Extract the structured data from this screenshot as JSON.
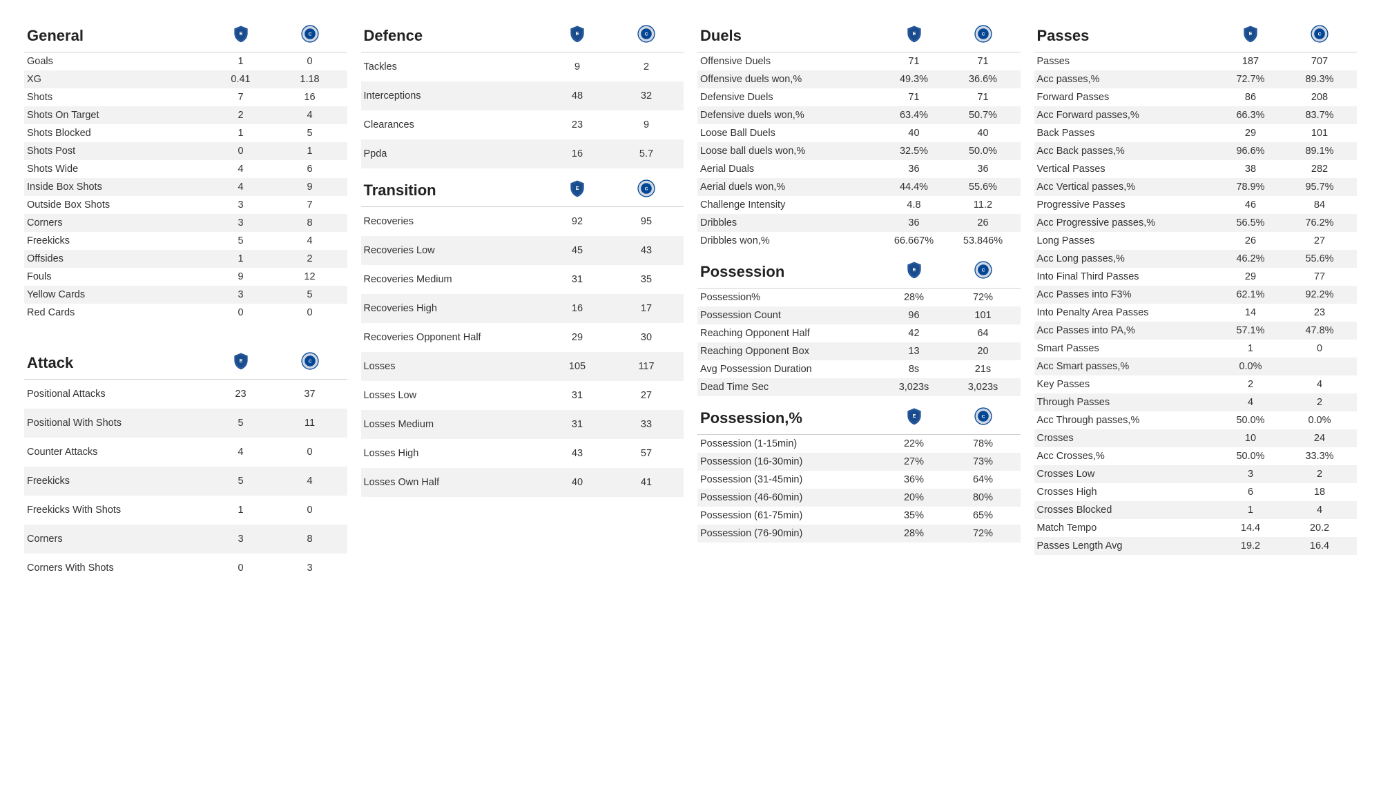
{
  "teams": {
    "a_color1": "#1a4c8b",
    "a_color2": "#2a5fa8",
    "b_color1": "#034694",
    "b_color2": "#d0d7e5"
  },
  "sections": {
    "general": {
      "title": "General",
      "rows": [
        {
          "label": "Goals",
          "a": "1",
          "b": "0"
        },
        {
          "label": "XG",
          "a": "0.41",
          "b": "1.18"
        },
        {
          "label": "Shots",
          "a": "7",
          "b": "16"
        },
        {
          "label": "Shots On Target",
          "a": "2",
          "b": "4"
        },
        {
          "label": "Shots Blocked",
          "a": "1",
          "b": "5"
        },
        {
          "label": "Shots Post",
          "a": "0",
          "b": "1"
        },
        {
          "label": "Shots Wide",
          "a": "4",
          "b": "6"
        },
        {
          "label": "Inside Box Shots",
          "a": "4",
          "b": "9"
        },
        {
          "label": "Outside Box Shots",
          "a": "3",
          "b": "7"
        },
        {
          "label": "Corners",
          "a": "3",
          "b": "8"
        },
        {
          "label": "Freekicks",
          "a": "5",
          "b": "4"
        },
        {
          "label": "Offsides",
          "a": "1",
          "b": "2"
        },
        {
          "label": "Fouls",
          "a": "9",
          "b": "12"
        },
        {
          "label": "Yellow Cards",
          "a": "3",
          "b": "5"
        },
        {
          "label": "Red Cards",
          "a": "0",
          "b": "0"
        }
      ]
    },
    "attack": {
      "title": "Attack",
      "rows": [
        {
          "label": "Positional Attacks",
          "a": "23",
          "b": "37"
        },
        {
          "label": "Positional With Shots",
          "a": "5",
          "b": "11"
        },
        {
          "label": "Counter Attacks",
          "a": "4",
          "b": "0"
        },
        {
          "label": "Freekicks",
          "a": "5",
          "b": "4"
        },
        {
          "label": "Freekicks With Shots",
          "a": "1",
          "b": "0"
        },
        {
          "label": "Corners",
          "a": "3",
          "b": "8"
        },
        {
          "label": "Corners With Shots",
          "a": "0",
          "b": "3"
        }
      ]
    },
    "defence": {
      "title": "Defence",
      "rows": [
        {
          "label": "Tackles",
          "a": "9",
          "b": "2"
        },
        {
          "label": "Interceptions",
          "a": "48",
          "b": "32"
        },
        {
          "label": "Clearances",
          "a": "23",
          "b": "9"
        },
        {
          "label": "Ppda",
          "a": "16",
          "b": "5.7"
        }
      ]
    },
    "transition": {
      "title": "Transition",
      "rows": [
        {
          "label": "Recoveries",
          "a": "92",
          "b": "95"
        },
        {
          "label": "Recoveries Low",
          "a": "45",
          "b": "43"
        },
        {
          "label": "Recoveries Medium",
          "a": "31",
          "b": "35"
        },
        {
          "label": "Recoveries High",
          "a": "16",
          "b": "17"
        },
        {
          "label": "Recoveries Opponent Half",
          "a": "29",
          "b": "30"
        },
        {
          "label": "Losses",
          "a": "105",
          "b": "117"
        },
        {
          "label": "Losses Low",
          "a": "31",
          "b": "27"
        },
        {
          "label": "Losses Medium",
          "a": "31",
          "b": "33"
        },
        {
          "label": "Losses High",
          "a": "43",
          "b": "57"
        },
        {
          "label": "Losses Own Half",
          "a": "40",
          "b": "41"
        }
      ]
    },
    "duels": {
      "title": "Duels",
      "rows": [
        {
          "label": "Offensive Duels",
          "a": "71",
          "b": "71"
        },
        {
          "label": "Offensive duels won,%",
          "a": "49.3%",
          "b": "36.6%"
        },
        {
          "label": "Defensive Duels",
          "a": "71",
          "b": "71"
        },
        {
          "label": "Defensive duels won,%",
          "a": "63.4%",
          "b": "50.7%"
        },
        {
          "label": "Loose Ball Duels",
          "a": "40",
          "b": "40"
        },
        {
          "label": "Loose ball duels won,%",
          "a": "32.5%",
          "b": "50.0%"
        },
        {
          "label": "Aerial Duals",
          "a": "36",
          "b": "36"
        },
        {
          "label": "Aerial duels won,%",
          "a": "44.4%",
          "b": "55.6%"
        },
        {
          "label": "Challenge Intensity",
          "a": "4.8",
          "b": "11.2"
        },
        {
          "label": "Dribbles",
          "a": "36",
          "b": "26"
        },
        {
          "label": "Dribbles won,%",
          "a": "66.667%",
          "b": "53.846%"
        }
      ]
    },
    "possession": {
      "title": "Possession",
      "rows": [
        {
          "label": "Possession%",
          "a": "28%",
          "b": "72%"
        },
        {
          "label": "Possession Count",
          "a": "96",
          "b": "101"
        },
        {
          "label": "Reaching Opponent Half",
          "a": "42",
          "b": "64"
        },
        {
          "label": "Reaching Opponent Box",
          "a": "13",
          "b": "20"
        },
        {
          "label": "Avg Possession Duration",
          "a": "8s",
          "b": "21s"
        },
        {
          "label": "Dead Time Sec",
          "a": "3,023s",
          "b": "3,023s"
        }
      ]
    },
    "possession_pct": {
      "title": "Possession,%",
      "rows": [
        {
          "label": "Possession (1-15min)",
          "a": "22%",
          "b": "78%"
        },
        {
          "label": "Possession (16-30min)",
          "a": "27%",
          "b": "73%"
        },
        {
          "label": "Possession (31-45min)",
          "a": "36%",
          "b": "64%"
        },
        {
          "label": "Possession (46-60min)",
          "a": "20%",
          "b": "80%"
        },
        {
          "label": "Possession (61-75min)",
          "a": "35%",
          "b": "65%"
        },
        {
          "label": "Possession (76-90min)",
          "a": "28%",
          "b": "72%"
        }
      ]
    },
    "passes": {
      "title": "Passes",
      "rows": [
        {
          "label": "Passes",
          "a": "187",
          "b": "707"
        },
        {
          "label": "Acc passes,%",
          "a": "72.7%",
          "b": "89.3%"
        },
        {
          "label": "Forward Passes",
          "a": "86",
          "b": "208"
        },
        {
          "label": "Acc Forward passes,%",
          "a": "66.3%",
          "b": "83.7%"
        },
        {
          "label": "Back Passes",
          "a": "29",
          "b": "101"
        },
        {
          "label": "Acc Back passes,%",
          "a": "96.6%",
          "b": "89.1%"
        },
        {
          "label": "Vertical Passes",
          "a": "38",
          "b": "282"
        },
        {
          "label": "Acc Vertical passes,%",
          "a": "78.9%",
          "b": "95.7%"
        },
        {
          "label": "Progressive Passes",
          "a": "46",
          "b": "84"
        },
        {
          "label": "Acc Progressive passes,%",
          "a": "56.5%",
          "b": "76.2%"
        },
        {
          "label": "Long Passes",
          "a": "26",
          "b": "27"
        },
        {
          "label": "Acc Long passes,%",
          "a": "46.2%",
          "b": "55.6%"
        },
        {
          "label": "Into Final Third Passes",
          "a": "29",
          "b": "77"
        },
        {
          "label": "Acc Passes into F3%",
          "a": "62.1%",
          "b": "92.2%"
        },
        {
          "label": "Into Penalty Area Passes",
          "a": "14",
          "b": "23"
        },
        {
          "label": "Acc Passes into PA,%",
          "a": "57.1%",
          "b": "47.8%"
        },
        {
          "label": "Smart Passes",
          "a": "1",
          "b": "0"
        },
        {
          "label": "Acc Smart passes,%",
          "a": "0.0%",
          "b": ""
        },
        {
          "label": "Key Passes",
          "a": "2",
          "b": "4"
        },
        {
          "label": "Through Passes",
          "a": "4",
          "b": "2"
        },
        {
          "label": "Acc Through passes,%",
          "a": "50.0%",
          "b": "0.0%"
        },
        {
          "label": "Crosses",
          "a": "10",
          "b": "24"
        },
        {
          "label": "Acc Crosses,%",
          "a": "50.0%",
          "b": "33.3%"
        },
        {
          "label": "Crosses Low",
          "a": "3",
          "b": "2"
        },
        {
          "label": "Crosses High",
          "a": "6",
          "b": "18"
        },
        {
          "label": "Crosses Blocked",
          "a": "1",
          "b": "4"
        },
        {
          "label": "Match Tempo",
          "a": "14.4",
          "b": "20.2"
        },
        {
          "label": "Passes Length Avg",
          "a": "19.2",
          "b": "16.4"
        }
      ]
    }
  }
}
